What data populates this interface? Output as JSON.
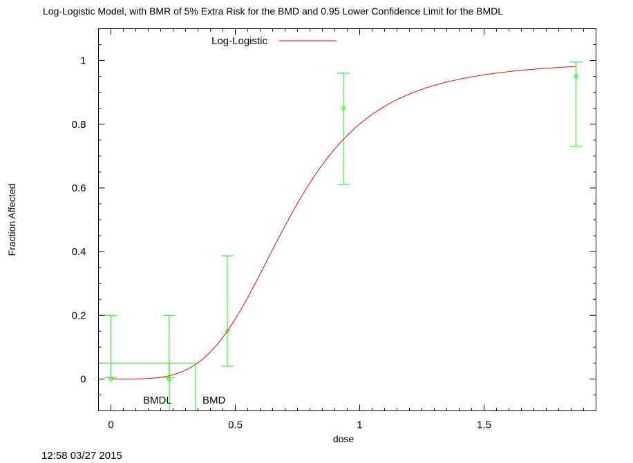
{
  "chart_data": {
    "type": "scatter",
    "title": "Log-Logistic Model, with BMR of 5% Extra Risk for the BMD and 0.95 Lower Confidence Limit for the BMDL",
    "xlabel": "dose",
    "ylabel": "Fraction Affected",
    "xlim": [
      -0.05,
      1.95
    ],
    "ylim": [
      -0.1,
      1.1
    ],
    "x_ticks": [
      0,
      0.5,
      1,
      1.5
    ],
    "y_ticks": [
      0,
      0.2,
      0.4,
      0.6,
      0.8,
      1
    ],
    "x_tick_labels": [
      "0",
      "0.5",
      "1",
      "1.5"
    ],
    "y_tick_labels": [
      "0",
      "0.2",
      "0.4",
      "0.6",
      "0.8",
      "1"
    ],
    "grid": false,
    "legend_position": "top-center",
    "series": [
      {
        "name": "Log-Logistic",
        "kind": "line",
        "color": "#ff0000",
        "model": {
          "background": 0.0,
          "intercept": 1.39,
          "slope": 4.11
        }
      },
      {
        "kind": "points-with-error-bars",
        "color": "#00ff00",
        "points": [
          {
            "x": 0.0,
            "y": 0.0,
            "lower": 0.005,
            "upper": 0.2
          },
          {
            "x": 0.234,
            "y": 0.0,
            "lower": 0.005,
            "upper": 0.2
          },
          {
            "x": 0.468,
            "y": 0.15,
            "lower": 0.04,
            "upper": 0.387
          },
          {
            "x": 0.935,
            "y": 0.85,
            "lower": 0.612,
            "upper": 0.96
          },
          {
            "x": 1.87,
            "y": 0.95,
            "lower": 0.73,
            "upper": 0.995
          }
        ]
      }
    ],
    "bmr": 0.05,
    "bmd": 0.34,
    "bmdl": 0.235,
    "annotations": {
      "bmdl_label": "BMDL",
      "bmd_label": "BMD"
    }
  },
  "timestamp": "12:58 03/27 2015"
}
